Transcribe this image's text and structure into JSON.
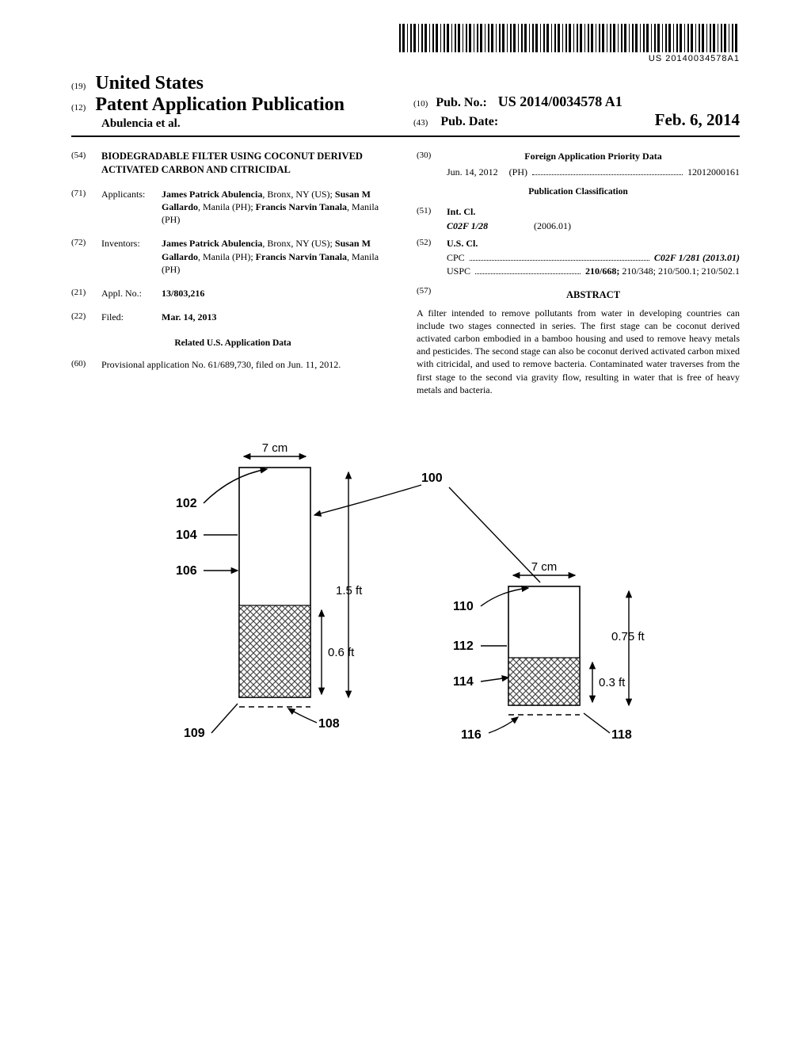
{
  "barcode_text": "US 20140034578A1",
  "header": {
    "country_prefix": "(19)",
    "country": "United States",
    "pub_prefix": "(12)",
    "pub_type": "Patent Application Publication",
    "author_line": "Abulencia et al.",
    "pubno_prefix": "(10)",
    "pubno_label": "Pub. No.:",
    "pubno_value": "US 2014/0034578 A1",
    "pubdate_prefix": "(43)",
    "pubdate_label": "Pub. Date:",
    "pubdate_value": "Feb. 6, 2014"
  },
  "left": {
    "title_num": "(54)",
    "title": "BIODEGRADABLE FILTER USING COCONUT DERIVED ACTIVATED CARBON AND CITRICIDAL",
    "applicants_num": "(71)",
    "applicants_label": "Applicants:",
    "applicants_text": "James Patrick Abulencia, Bronx, NY (US); Susan M Gallardo, Manila (PH); Francis Narvin Tanala, Manila (PH)",
    "inventors_num": "(72)",
    "inventors_label": "Inventors:",
    "inventors_text": "James Patrick Abulencia, Bronx, NY (US); Susan M Gallardo, Manila (PH); Francis Narvin Tanala, Manila (PH)",
    "applno_num": "(21)",
    "applno_label": "Appl. No.:",
    "applno_value": "13/803,216",
    "filed_num": "(22)",
    "filed_label": "Filed:",
    "filed_value": "Mar. 14, 2013",
    "related_heading": "Related U.S. Application Data",
    "provisional_num": "(60)",
    "provisional_text": "Provisional application No. 61/689,730, filed on Jun. 11, 2012."
  },
  "right": {
    "foreign_num": "(30)",
    "foreign_heading": "Foreign Application Priority Data",
    "foreign_date": "Jun. 14, 2012",
    "foreign_country": "(PH)",
    "foreign_appno": "12012000161",
    "pubclass_heading": "Publication Classification",
    "intcl_num": "(51)",
    "intcl_label": "Int. Cl.",
    "intcl_code": "C02F 1/28",
    "intcl_year": "(2006.01)",
    "uscl_num": "(52)",
    "uscl_label": "U.S. Cl.",
    "cpc_label": "CPC",
    "cpc_value": "C02F 1/281 (2013.01)",
    "uspc_label": "USPC",
    "uspc_value": "210/668; 210/348; 210/500.1; 210/502.1",
    "abstract_num": "(57)",
    "abstract_label": "ABSTRACT",
    "abstract_text": "A filter intended to remove pollutants from water in developing countries can include two stages connected in series. The first stage can be coconut derived activated carbon embodied in a bamboo housing and used to remove heavy metals and pesticides. The second stage can also be coconut derived activated carbon mixed with citricidal, and used to remove bacteria. Contaminated water traverses from the first stage to the second via gravity flow, resulting in water that is free of heavy metals and bacteria."
  },
  "figure": {
    "l": {
      "top_dim": "7 cm",
      "ref100": "100",
      "ref102": "102",
      "ref104": "104",
      "ref106": "106",
      "ref108": "108",
      "ref109": "109",
      "h_total": "1.5 ft",
      "h_fill": "0.6 ft"
    },
    "r": {
      "top_dim": "7 cm",
      "ref110": "110",
      "ref112": "112",
      "ref114": "114",
      "ref116": "116",
      "ref118": "118",
      "h_total": "0.75 ft",
      "h_fill": "0.3 ft"
    },
    "colors": {
      "stroke": "#000000",
      "hatch": "#4a4a4a",
      "bg": "#ffffff"
    }
  }
}
